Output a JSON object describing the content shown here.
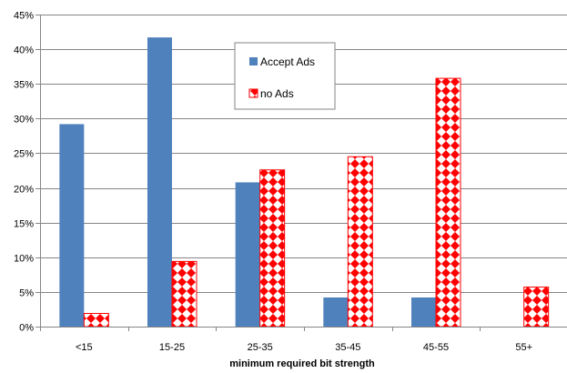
{
  "chart_data": {
    "type": "bar",
    "categories": [
      "<15",
      "15-25",
      "25-35",
      "35-45",
      "45-55",
      "55+"
    ],
    "series": [
      {
        "name": "Accept Ads",
        "values": [
          29.2,
          41.7,
          20.8,
          4.2,
          4.2,
          0
        ],
        "color": "#4f81bd"
      },
      {
        "name": "no Ads",
        "values": [
          1.9,
          9.4,
          22.6,
          24.5,
          35.8,
          5.7
        ],
        "color": "#ff0000",
        "pattern": "red-diamond-checker"
      }
    ],
    "title": "",
    "xlabel": "minimum required bit strength",
    "ylabel": "",
    "ylim": [
      0,
      45
    ],
    "yticks": [
      "0%",
      "5%",
      "10%",
      "15%",
      "20%",
      "25%",
      "30%",
      "35%",
      "40%",
      "45%"
    ],
    "grid": true,
    "legend": "top-center"
  }
}
